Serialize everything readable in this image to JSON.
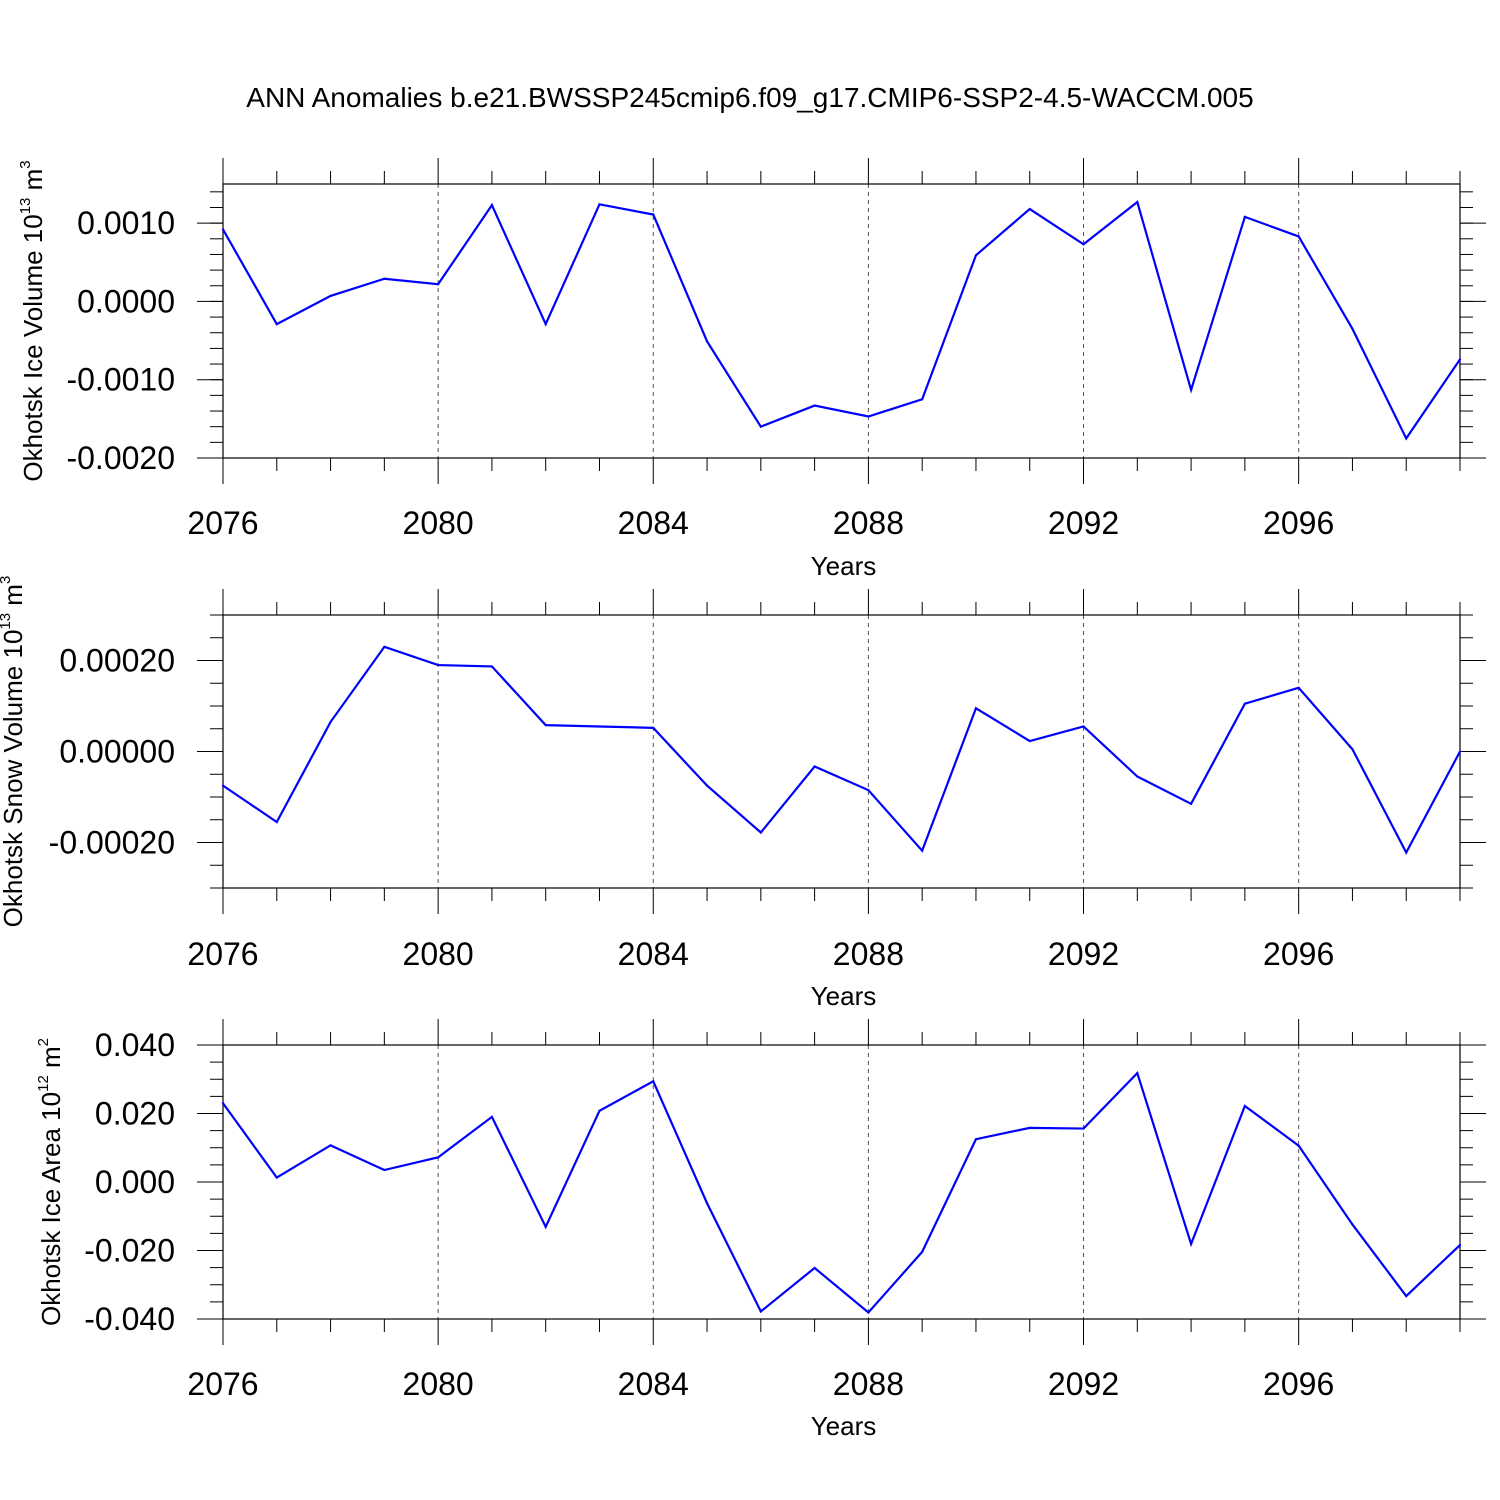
{
  "figure": {
    "title": "ANN Anomalies b.e21.BWSSP245cmip6.f09_g17.CMIP6-SSP2-4.5-WACCM.005"
  },
  "chart_data": [
    {
      "type": "line",
      "title": "",
      "xlabel": "Years",
      "ylabel_text": "Okhotsk Ice Volume 10",
      "ylabel_exp": "13",
      "ylabel_unit": " m",
      "ylabel_unit_exp": "3",
      "xlim": [
        2076,
        2099
      ],
      "ylim": [
        -0.002,
        0.0015
      ],
      "x_ticks": [
        2076,
        2080,
        2084,
        2088,
        2092,
        2096
      ],
      "x_tick_labels": [
        "2076",
        "2080",
        "2084",
        "2088",
        "2092",
        "2096"
      ],
      "y_ticks": [
        0.001,
        0.0,
        -0.001,
        -0.002
      ],
      "y_tick_labels": [
        "0.0010",
        "0.0000",
        "-0.0010",
        "-0.0020"
      ],
      "y_minor_step": 0.0002,
      "grid": "vertical dashed at major x ticks",
      "color": "#0000ff",
      "series": [
        {
          "x": [
            2076,
            2077,
            2078,
            2079,
            2080,
            2081,
            2082,
            2083,
            2084,
            2085,
            2086,
            2087,
            2088,
            2089,
            2090,
            2091,
            2092,
            2093,
            2094,
            2095,
            2096,
            2097,
            2098,
            2099
          ],
          "values": [
            0.00092,
            -0.00029,
            7e-05,
            0.00029,
            0.00022,
            0.00123,
            -0.00029,
            0.00124,
            0.00111,
            -0.00051,
            -0.0016,
            -0.00133,
            -0.00147,
            -0.00125,
            0.00059,
            0.00118,
            0.00073,
            0.00127,
            -0.00113,
            0.00108,
            0.00083,
            -0.00035,
            -0.00175,
            -0.00074
          ]
        }
      ]
    },
    {
      "type": "line",
      "title": "",
      "xlabel": "Years",
      "ylabel_text": "Okhotsk Snow Volume 10",
      "ylabel_exp": "13",
      "ylabel_unit": " m",
      "ylabel_unit_exp": "3",
      "xlim": [
        2076,
        2099
      ],
      "ylim": [
        -0.0003,
        0.0003
      ],
      "x_ticks": [
        2076,
        2080,
        2084,
        2088,
        2092,
        2096
      ],
      "x_tick_labels": [
        "2076",
        "2080",
        "2084",
        "2088",
        "2092",
        "2096"
      ],
      "y_ticks": [
        0.0002,
        0.0,
        -0.0002
      ],
      "y_tick_labels": [
        "0.00020",
        "0.00000",
        "-0.00020"
      ],
      "y_minor_step": 5e-05,
      "grid": "vertical dashed at major x ticks",
      "color": "#0000ff",
      "series": [
        {
          "x": [
            2076,
            2077,
            2078,
            2079,
            2080,
            2081,
            2082,
            2083,
            2084,
            2085,
            2086,
            2087,
            2088,
            2089,
            2090,
            2091,
            2092,
            2093,
            2094,
            2095,
            2096,
            2097,
            2098,
            2099
          ],
          "values": [
            -7.5e-05,
            -0.000155,
            6.5e-05,
            0.00023,
            0.00019,
            0.000187,
            5.8e-05,
            5.5e-05,
            5.2e-05,
            -7.5e-05,
            -0.000178,
            -3.3e-05,
            -8.5e-05,
            -0.000218,
            9.5e-05,
            2.3e-05,
            5.5e-05,
            -5.5e-05,
            -0.000115,
            0.000105,
            0.00014,
            5e-06,
            -0.000222,
            0.0
          ]
        }
      ]
    },
    {
      "type": "line",
      "title": "",
      "xlabel": "Years",
      "ylabel_text": "Okhotsk Ice Area 10",
      "ylabel_exp": "12",
      "ylabel_unit": " m",
      "ylabel_unit_exp": "2",
      "xlim": [
        2076,
        2099
      ],
      "ylim": [
        -0.04,
        0.04
      ],
      "x_ticks": [
        2076,
        2080,
        2084,
        2088,
        2092,
        2096
      ],
      "x_tick_labels": [
        "2076",
        "2080",
        "2084",
        "2088",
        "2092",
        "2096"
      ],
      "y_ticks": [
        0.04,
        0.02,
        0.0,
        -0.02,
        -0.04
      ],
      "y_tick_labels": [
        "0.040",
        "0.020",
        "0.000",
        "-0.020",
        "-0.040"
      ],
      "y_minor_step": 0.005,
      "grid": "vertical dashed at major x ticks",
      "color": "#0000ff",
      "series": [
        {
          "x": [
            2076,
            2077,
            2078,
            2079,
            2080,
            2081,
            2082,
            2083,
            2084,
            2085,
            2086,
            2087,
            2088,
            2089,
            2090,
            2091,
            2092,
            2093,
            2094,
            2095,
            2096,
            2097,
            2098,
            2099
          ],
          "values": [
            0.023,
            0.0013,
            0.0107,
            0.0035,
            0.0072,
            0.019,
            -0.0131,
            0.0208,
            0.0294,
            -0.0062,
            -0.0378,
            -0.0251,
            -0.0381,
            -0.0204,
            0.0125,
            0.0158,
            0.0156,
            0.0318,
            -0.0181,
            0.0222,
            0.0106,
            -0.0124,
            -0.0333,
            -0.0184
          ]
        }
      ]
    }
  ]
}
